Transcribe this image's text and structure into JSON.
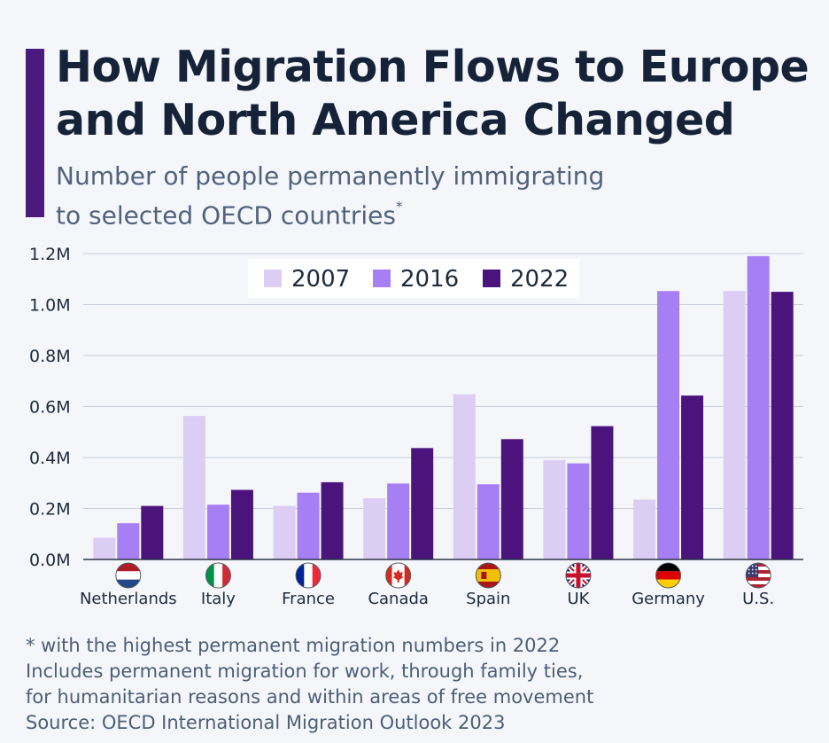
{
  "header": {
    "title_line1": "How Migration Flows to Europe",
    "title_line2": "and North America Changed",
    "subtitle_line1": "Number of people permanently immigrating",
    "subtitle_line2": "to selected OECD countries",
    "subtitle_mark": "*"
  },
  "footer": {
    "note_line1": "* with the highest permanent migration numbers in 2022",
    "note_line2": "Includes permanent migration for work, through family ties,",
    "note_line3": "for humanitarian reasons and within areas of free movement",
    "source": "Source: OECD International Migration Outlook 2023"
  },
  "colors": {
    "accent": "#4b1a7f",
    "series_2007": "#dccdf5",
    "series_2016": "#a77ff5",
    "series_2022": "#4b147c",
    "grid": "#c9d0da",
    "axis": "#2b3445"
  },
  "chart_data": {
    "type": "bar",
    "categories": [
      "Netherlands",
      "Italy",
      "France",
      "Canada",
      "Spain",
      "UK",
      "Germany",
      "U.S."
    ],
    "category_icons": [
      "netherlands-flag-icon",
      "italy-flag-icon",
      "france-flag-icon",
      "canada-flag-icon",
      "spain-flag-icon",
      "uk-flag-icon",
      "germany-flag-icon",
      "us-flag-icon"
    ],
    "series": [
      {
        "name": "2007",
        "values": [
          85000,
          563000,
          210000,
          240000,
          648000,
          390000,
          235000,
          1053000
        ]
      },
      {
        "name": "2016",
        "values": [
          142000,
          215000,
          262000,
          298000,
          295000,
          377000,
          1053000,
          1190000
        ]
      },
      {
        "name": "2022",
        "values": [
          210000,
          273000,
          303000,
          437000,
          472000,
          523000,
          643000,
          1050000
        ]
      }
    ],
    "ylim": [
      0,
      1200000
    ],
    "y_ticks": [
      0,
      200000,
      400000,
      600000,
      800000,
      1000000,
      1200000
    ],
    "y_tick_labels": [
      "0.0M",
      "0.2M",
      "0.4M",
      "0.6M",
      "0.8M",
      "1.0M",
      "1.2M"
    ],
    "xlabel": "",
    "ylabel": "",
    "grid": true,
    "legend_position": "top-center"
  }
}
